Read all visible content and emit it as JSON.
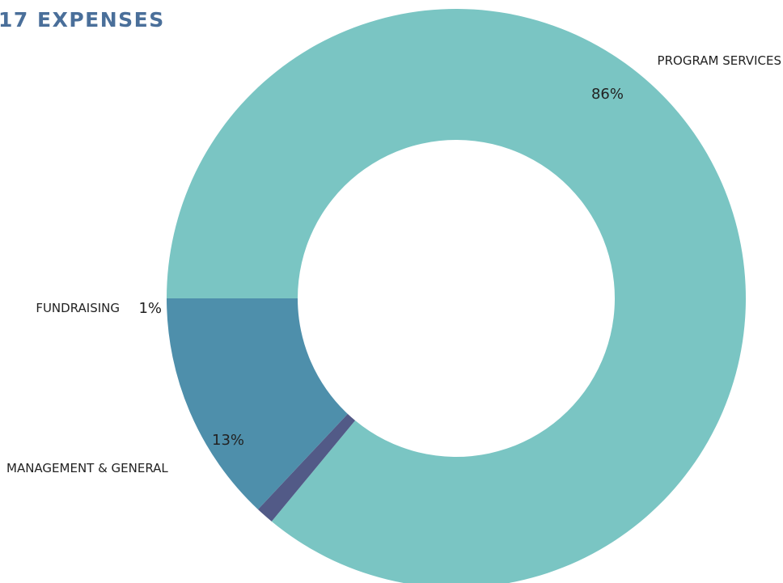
{
  "page": {
    "title": "17 EXPENSES",
    "title_color": "#4a6f9a"
  },
  "chart_data": {
    "type": "pie",
    "title": "17 EXPENSES",
    "donut": true,
    "start_angle_deg": 180,
    "direction": "clockwise",
    "slices": [
      {
        "label": "PROGRAM SERVICES",
        "value": 86,
        "display": "86%",
        "color": "#7ac5c3"
      },
      {
        "label": "FUNDRAISING",
        "value": 1,
        "display": "1%",
        "color": "#525a87"
      },
      {
        "label": "MANAGEMENT & GENERAL",
        "value": 13,
        "display": "13%",
        "color": "#4e8fab"
      }
    ]
  }
}
